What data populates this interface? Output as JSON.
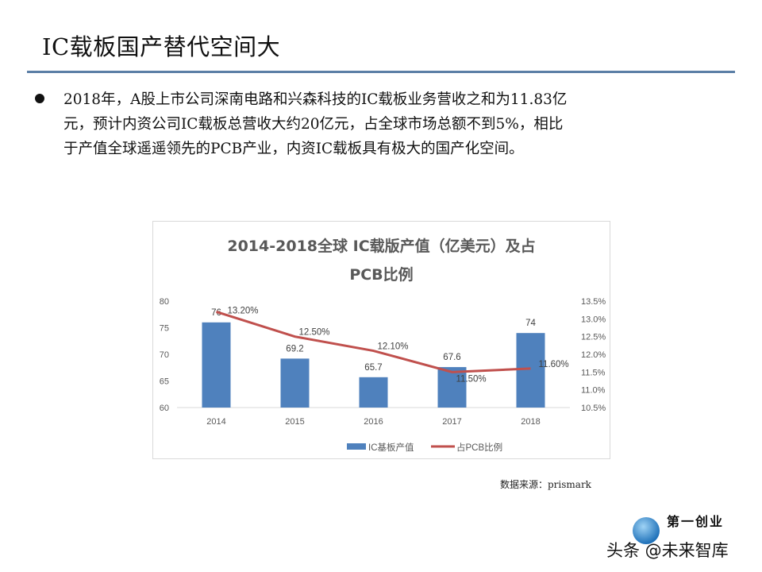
{
  "slide": {
    "title": "IC载板国产替代空间大",
    "bullet_lines": [
      "2018年，A股上市公司深南电路和兴森科技的IC载板业务营收之和为11.83亿",
      "元，预计内资公司IC载板总营收大约20亿元，占全球市场总额不到5%，相比",
      "于产值全球遥遥领先的PCB产业，内资IC载板具有极大的国产化空间。"
    ],
    "source": "数据来源：prismark",
    "watermark": "头条 @未来智库",
    "logo_text": "第一创业"
  },
  "colors": {
    "bar": "#4f81bd",
    "line": "#c0504d",
    "rule": "#5b7fa6"
  },
  "chart_data": {
    "type": "bar+line",
    "title_lines": [
      "2014-2018全球 IC载版产值（亿美元）及占",
      "PCB比例"
    ],
    "categories": [
      "2014",
      "2015",
      "2016",
      "2017",
      "2018"
    ],
    "y_left": {
      "lim": [
        60,
        80
      ],
      "ticks": [
        "60",
        "65",
        "70",
        "75",
        "80"
      ]
    },
    "y_right": {
      "lim": [
        10.5,
        13.5
      ],
      "ticks": [
        "10.5%",
        "11.0%",
        "11.5%",
        "12.0%",
        "12.5%",
        "13.0%",
        "13.5%"
      ]
    },
    "grid": false,
    "legend": "bottom",
    "series": [
      {
        "name": "IC基板产值",
        "type": "bar",
        "axis": "left",
        "values": [
          76,
          69.2,
          65.7,
          67.6,
          74
        ],
        "labels": [
          "76",
          "69.2",
          "65.7",
          "67.6",
          "74"
        ]
      },
      {
        "name": "占PCB比例",
        "type": "line",
        "axis": "right",
        "values": [
          13.2,
          12.5,
          12.1,
          11.5,
          11.6
        ],
        "labels": [
          "13.20%",
          "12.50%",
          "12.10%",
          "11.50%",
          "11.60%"
        ]
      }
    ]
  }
}
